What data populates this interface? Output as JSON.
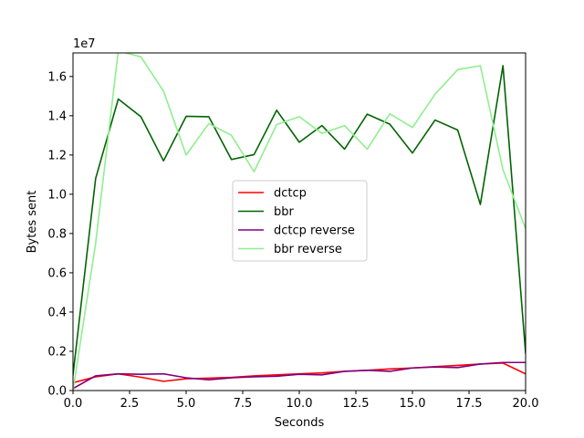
{
  "chart_data": {
    "type": "line",
    "title": "",
    "xlabel": "Seconds",
    "ylabel": "Bytes sent",
    "y_offset_label": "1e7",
    "xlim": [
      0,
      20
    ],
    "ylim": [
      0,
      1.72
    ],
    "x_ticks": [
      0,
      2.5,
      5,
      7.5,
      10,
      12.5,
      15,
      17.5,
      20
    ],
    "x_tick_labels": [
      "0.0",
      "2.5",
      "5.0",
      "7.5",
      "10.0",
      "12.5",
      "15.0",
      "17.5",
      "20.0"
    ],
    "y_ticks": [
      0,
      0.2,
      0.4,
      0.6,
      0.8,
      1.0,
      1.2,
      1.4,
      1.6
    ],
    "y_tick_labels": [
      "0.0",
      "0.2",
      "0.4",
      "0.6",
      "0.8",
      "1.0",
      "1.2",
      "1.4",
      "1.6"
    ],
    "grid": false,
    "legend_position": "center",
    "x": [
      0,
      1,
      2,
      3,
      4,
      5,
      6,
      7,
      8,
      9,
      10,
      11,
      12,
      13,
      14,
      15,
      16,
      17,
      18,
      19,
      20
    ],
    "series": [
      {
        "name": "dctcp",
        "color": "#ff0000",
        "values": [
          0.04,
          0.07,
          0.085,
          0.068,
          0.047,
          0.06,
          0.063,
          0.067,
          0.075,
          0.08,
          0.085,
          0.09,
          0.098,
          0.103,
          0.11,
          0.115,
          0.122,
          0.128,
          0.135,
          0.14,
          0.085
        ]
      },
      {
        "name": "bbr",
        "color": "#006400",
        "values": [
          0.08,
          1.08,
          1.485,
          1.395,
          1.17,
          1.397,
          1.395,
          1.177,
          1.202,
          1.428,
          1.265,
          1.35,
          1.23,
          1.408,
          1.357,
          1.21,
          1.378,
          1.327,
          0.948,
          1.655,
          0.19
        ]
      },
      {
        "name": "dctcp reverse",
        "color": "#800080",
        "values": [
          0.01,
          0.075,
          0.085,
          0.083,
          0.085,
          0.065,
          0.055,
          0.065,
          0.07,
          0.073,
          0.083,
          0.08,
          0.098,
          0.103,
          0.098,
          0.115,
          0.12,
          0.117,
          0.135,
          0.143,
          0.143
        ]
      },
      {
        "name": "bbr reverse",
        "color": "#90ee90",
        "values": [
          0.0,
          0.75,
          1.73,
          1.7,
          1.525,
          1.2,
          1.36,
          1.3,
          1.115,
          1.355,
          1.395,
          1.31,
          1.35,
          1.23,
          1.41,
          1.34,
          1.51,
          1.635,
          1.655,
          1.125,
          0.825
        ]
      }
    ]
  }
}
